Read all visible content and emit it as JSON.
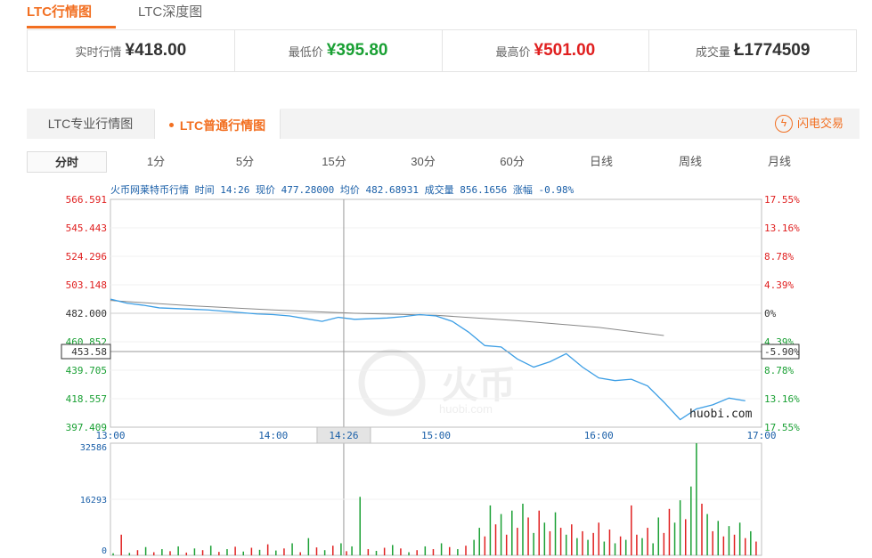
{
  "top_tabs": [
    "LTC行情图",
    "LTC深度图"
  ],
  "stats": [
    {
      "label": "实时行情",
      "value": "¥418.00",
      "tone": "dark"
    },
    {
      "label": "最低价",
      "value": "¥395.80",
      "tone": "green"
    },
    {
      "label": "最高价",
      "value": "¥501.00",
      "tone": "red"
    },
    {
      "label": "成交量",
      "value": "Ł1774509",
      "tone": "dark"
    }
  ],
  "sub_tabs": {
    "pro": "LTC专业行情图",
    "normal": "LTC普通行情图"
  },
  "flash_trade": {
    "label": "闪电交易",
    "icon": "lightning-icon"
  },
  "periods": [
    "分时",
    "1分",
    "5分",
    "15分",
    "30分",
    "60分",
    "日线",
    "周线",
    "月线"
  ],
  "colors": {
    "accent": "#f26f21",
    "up": "#e02020",
    "down": "#1aa034",
    "price_line": "#3c9ee5",
    "avg_line": "#888888",
    "axis_text": "#1a5fa8"
  },
  "chart_data": {
    "type": "line",
    "header": "火币网莱特币行情 时间 14:26 现价 477.28000 均价 482.68931 成交量 856.1656 涨幅 -0.98%",
    "xlim": [
      "13:00",
      "17:00"
    ],
    "x_ticks": [
      "13:00",
      "14:00",
      "14:26",
      "15:00",
      "16:00",
      "17:00"
    ],
    "ylim": [
      397.409,
      566.591
    ],
    "y_ticks": [
      "566.591",
      "545.443",
      "524.296",
      "503.148",
      "482.000",
      "460.852",
      "439.705",
      "418.557",
      "397.409"
    ],
    "y_ticks_right": [
      "17.55%",
      "13.16%",
      "8.78%",
      "4.39%",
      "0%",
      "4.39%",
      "8.78%",
      "13.16%",
      "17.55%"
    ],
    "crosshair": {
      "time": "14:26",
      "price": "453.58",
      "change": "-5.90%"
    },
    "watermark": "huobi.com",
    "volume_ticks": [
      "32586",
      "16293",
      "0"
    ],
    "volume_max": 32586,
    "series": [
      {
        "x": [
          "13:00",
          "13:06",
          "13:12",
          "13:18",
          "13:24",
          "13:30",
          "13:36",
          "13:42",
          "13:48",
          "13:54",
          "14:00",
          "14:06",
          "14:12",
          "14:18",
          "14:24",
          "14:30",
          "14:36",
          "14:42",
          "14:48",
          "14:54",
          "15:00",
          "15:06",
          "15:12",
          "15:18",
          "15:24",
          "15:30",
          "15:36",
          "15:42",
          "15:48",
          "15:54",
          "16:00",
          "16:06",
          "16:12",
          "16:18",
          "16:24",
          "16:30",
          "16:36",
          "16:42",
          "16:48",
          "16:54",
          "17:00"
        ],
        "values": [
          492.5,
          489.5,
          488,
          486,
          485.5,
          485,
          484.5,
          483.5,
          482.5,
          481.5,
          481,
          480,
          478,
          476,
          479,
          477.5,
          478,
          478.5,
          479.5,
          481,
          480,
          476,
          468,
          458,
          457,
          448,
          442,
          446,
          452,
          442,
          434,
          432,
          433,
          428,
          416,
          403,
          411,
          414,
          419,
          417,
          null
        ]
      },
      {
        "x": [
          "13:00",
          "13:30",
          "14:00",
          "14:30",
          "15:00",
          "15:30",
          "16:00",
          "16:24"
        ],
        "values": [
          491.5,
          487.5,
          484.5,
          482,
          480.5,
          476.5,
          471.5,
          465.5
        ]
      }
    ],
    "volume": [
      {
        "t": "13:01",
        "v": 600,
        "up": true
      },
      {
        "t": "13:04",
        "v": 6000,
        "up": false
      },
      {
        "t": "13:07",
        "v": 700,
        "up": true
      },
      {
        "t": "13:10",
        "v": 1500,
        "up": false
      },
      {
        "t": "13:13",
        "v": 2400,
        "up": true
      },
      {
        "t": "13:16",
        "v": 900,
        "up": false
      },
      {
        "t": "13:19",
        "v": 1800,
        "up": true
      },
      {
        "t": "13:22",
        "v": 1200,
        "up": false
      },
      {
        "t": "13:25",
        "v": 2600,
        "up": true
      },
      {
        "t": "13:28",
        "v": 800,
        "up": false
      },
      {
        "t": "13:31",
        "v": 2000,
        "up": true
      },
      {
        "t": "13:34",
        "v": 1500,
        "up": false
      },
      {
        "t": "13:37",
        "v": 2800,
        "up": true
      },
      {
        "t": "13:40",
        "v": 1000,
        "up": false
      },
      {
        "t": "13:43",
        "v": 1800,
        "up": true
      },
      {
        "t": "13:46",
        "v": 2500,
        "up": false
      },
      {
        "t": "13:49",
        "v": 1100,
        "up": true
      },
      {
        "t": "13:52",
        "v": 2200,
        "up": false
      },
      {
        "t": "13:55",
        "v": 1600,
        "up": true
      },
      {
        "t": "13:58",
        "v": 3200,
        "up": false
      },
      {
        "t": "14:01",
        "v": 1400,
        "up": true
      },
      {
        "t": "14:04",
        "v": 2000,
        "up": false
      },
      {
        "t": "14:07",
        "v": 3500,
        "up": true
      },
      {
        "t": "14:10",
        "v": 900,
        "up": false
      },
      {
        "t": "14:13",
        "v": 5000,
        "up": true
      },
      {
        "t": "14:16",
        "v": 2300,
        "up": false
      },
      {
        "t": "14:19",
        "v": 1500,
        "up": true
      },
      {
        "t": "14:22",
        "v": 2800,
        "up": false
      },
      {
        "t": "14:25",
        "v": 3500,
        "up": true
      },
      {
        "t": "14:27",
        "v": 1200,
        "up": false
      },
      {
        "t": "14:29",
        "v": 2600,
        "up": true
      },
      {
        "t": "14:32",
        "v": 17000,
        "up": true
      },
      {
        "t": "14:35",
        "v": 1800,
        "up": false
      },
      {
        "t": "14:38",
        "v": 1300,
        "up": true
      },
      {
        "t": "14:41",
        "v": 2200,
        "up": false
      },
      {
        "t": "14:44",
        "v": 3000,
        "up": true
      },
      {
        "t": "14:47",
        "v": 2000,
        "up": false
      },
      {
        "t": "14:50",
        "v": 900,
        "up": true
      },
      {
        "t": "14:53",
        "v": 1500,
        "up": false
      },
      {
        "t": "14:56",
        "v": 2600,
        "up": true
      },
      {
        "t": "14:59",
        "v": 1800,
        "up": false
      },
      {
        "t": "15:02",
        "v": 3500,
        "up": true
      },
      {
        "t": "15:05",
        "v": 2400,
        "up": false
      },
      {
        "t": "15:08",
        "v": 1800,
        "up": true
      },
      {
        "t": "15:11",
        "v": 2800,
        "up": false
      },
      {
        "t": "15:14",
        "v": 4500,
        "up": true
      },
      {
        "t": "15:16",
        "v": 8000,
        "up": true
      },
      {
        "t": "15:18",
        "v": 5500,
        "up": false
      },
      {
        "t": "15:20",
        "v": 14500,
        "up": true
      },
      {
        "t": "15:22",
        "v": 9000,
        "up": false
      },
      {
        "t": "15:24",
        "v": 12000,
        "up": true
      },
      {
        "t": "15:26",
        "v": 6000,
        "up": false
      },
      {
        "t": "15:28",
        "v": 13000,
        "up": true
      },
      {
        "t": "15:30",
        "v": 8000,
        "up": false
      },
      {
        "t": "15:32",
        "v": 15000,
        "up": true
      },
      {
        "t": "15:34",
        "v": 11000,
        "up": false
      },
      {
        "t": "15:36",
        "v": 6500,
        "up": true
      },
      {
        "t": "15:38",
        "v": 13000,
        "up": false
      },
      {
        "t": "15:40",
        "v": 9500,
        "up": true
      },
      {
        "t": "15:42",
        "v": 7000,
        "up": false
      },
      {
        "t": "15:44",
        "v": 12500,
        "up": true
      },
      {
        "t": "15:46",
        "v": 8000,
        "up": false
      },
      {
        "t": "15:48",
        "v": 6000,
        "up": true
      },
      {
        "t": "15:50",
        "v": 9000,
        "up": false
      },
      {
        "t": "15:52",
        "v": 5000,
        "up": true
      },
      {
        "t": "15:54",
        "v": 7000,
        "up": false
      },
      {
        "t": "15:56",
        "v": 4500,
        "up": true
      },
      {
        "t": "15:58",
        "v": 6500,
        "up": false
      },
      {
        "t": "16:00",
        "v": 9500,
        "up": false
      },
      {
        "t": "16:02",
        "v": 4000,
        "up": true
      },
      {
        "t": "16:04",
        "v": 7500,
        "up": false
      },
      {
        "t": "16:06",
        "v": 3500,
        "up": true
      },
      {
        "t": "16:08",
        "v": 5500,
        "up": false
      },
      {
        "t": "16:10",
        "v": 4500,
        "up": true
      },
      {
        "t": "16:12",
        "v": 14500,
        "up": false
      },
      {
        "t": "16:14",
        "v": 6000,
        "up": false
      },
      {
        "t": "16:16",
        "v": 5000,
        "up": true
      },
      {
        "t": "16:18",
        "v": 8000,
        "up": false
      },
      {
        "t": "16:20",
        "v": 3500,
        "up": true
      },
      {
        "t": "16:22",
        "v": 11000,
        "up": true
      },
      {
        "t": "16:24",
        "v": 6500,
        "up": false
      },
      {
        "t": "16:26",
        "v": 13500,
        "up": false
      },
      {
        "t": "16:28",
        "v": 9500,
        "up": true
      },
      {
        "t": "16:30",
        "v": 16000,
        "up": true
      },
      {
        "t": "16:32",
        "v": 10500,
        "up": false
      },
      {
        "t": "16:34",
        "v": 20000,
        "up": true
      },
      {
        "t": "16:36",
        "v": 32586,
        "up": true
      },
      {
        "t": "16:38",
        "v": 15000,
        "up": false
      },
      {
        "t": "16:40",
        "v": 12000,
        "up": true
      },
      {
        "t": "16:42",
        "v": 7000,
        "up": false
      },
      {
        "t": "16:44",
        "v": 10000,
        "up": true
      },
      {
        "t": "16:46",
        "v": 5500,
        "up": false
      },
      {
        "t": "16:48",
        "v": 8500,
        "up": true
      },
      {
        "t": "16:50",
        "v": 6000,
        "up": false
      },
      {
        "t": "16:52",
        "v": 9500,
        "up": true
      },
      {
        "t": "16:54",
        "v": 5000,
        "up": false
      },
      {
        "t": "16:56",
        "v": 7000,
        "up": true
      },
      {
        "t": "16:58",
        "v": 4000,
        "up": false
      }
    ]
  }
}
